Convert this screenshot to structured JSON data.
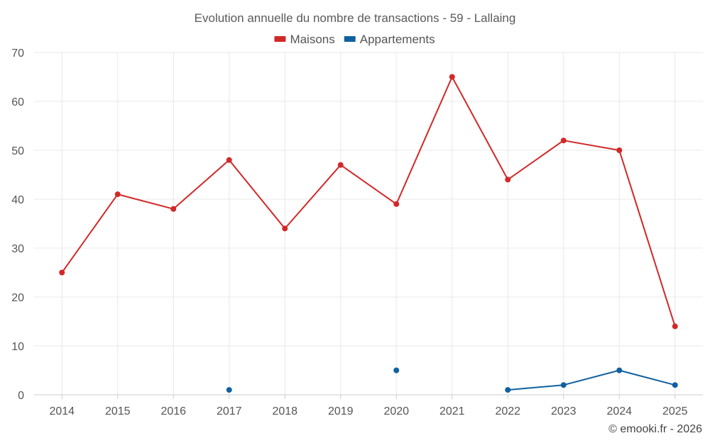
{
  "chart_data": {
    "type": "line",
    "title": "Evolution annuelle du nombre de transactions - 59 - Lallaing",
    "categories": [
      "2014",
      "2015",
      "2016",
      "2017",
      "2018",
      "2019",
      "2020",
      "2021",
      "2022",
      "2023",
      "2024",
      "2025"
    ],
    "ylim": [
      0,
      70
    ],
    "yticks": [
      0,
      10,
      20,
      30,
      40,
      50,
      60,
      70
    ],
    "grid": true,
    "legend_position": "top-center",
    "series": [
      {
        "name": "Maisons",
        "color": "#d22828",
        "values": [
          25,
          41,
          38,
          48,
          34,
          47,
          39,
          65,
          44,
          52,
          50,
          14
        ]
      },
      {
        "name": "Appartements",
        "color": "#1060a0",
        "values": [
          null,
          null,
          null,
          1,
          null,
          null,
          5,
          null,
          1,
          2,
          5,
          2
        ]
      }
    ]
  },
  "credit": "© emooki.fr - 2026"
}
